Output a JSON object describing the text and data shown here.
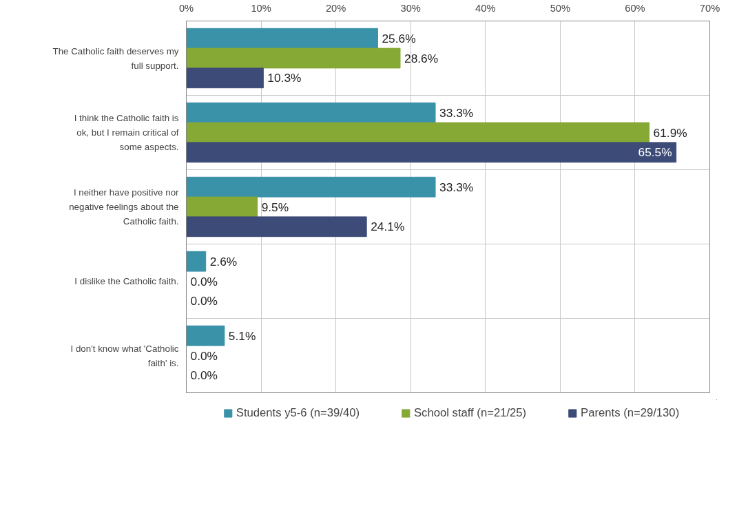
{
  "chart_data": {
    "type": "bar",
    "orientation": "horizontal",
    "categories": [
      "The Catholic faith deserves my full support.",
      "I think the Catholic faith is ok, but I remain critical of some aspects.",
      "I neither have positive nor negative feelings about the Catholic faith.",
      "I dislike the Catholic faith.",
      "I don't know what 'Catholic faith' is."
    ],
    "series": [
      {
        "name": "Students y5-6 (n=39/40)",
        "color": "#3a92a9",
        "values": [
          25.6,
          33.3,
          33.3,
          2.6,
          5.1
        ],
        "value_labels": [
          "25.6%",
          "33.3%",
          "33.3%",
          "2.6%",
          "5.1%"
        ]
      },
      {
        "name": "School staff (n=21/25)",
        "color": "#86a936",
        "values": [
          28.6,
          61.9,
          9.5,
          0.0,
          0.0
        ],
        "value_labels": [
          "28.6%",
          "61.9%",
          "9.5%",
          "0.0%",
          "0.0%"
        ]
      },
      {
        "name": "Parents (n=29/130)",
        "color": "#3d4b78",
        "values": [
          10.3,
          65.5,
          24.1,
          0.0,
          0.0
        ],
        "value_labels": [
          "10.3%",
          "65.5%",
          "24.1%",
          "0.0%",
          "0.0%"
        ]
      }
    ],
    "xlim": [
      0,
      70
    ],
    "xticks": [
      {
        "value": 0,
        "label": "0%"
      },
      {
        "value": 10,
        "label": "10%"
      },
      {
        "value": 20,
        "label": "20%"
      },
      {
        "value": 30,
        "label": "30%"
      },
      {
        "value": 40,
        "label": "40%"
      },
      {
        "value": 50,
        "label": "50%"
      },
      {
        "value": 60,
        "label": "60%"
      },
      {
        "value": 70,
        "label": "70%"
      }
    ],
    "grid": true,
    "legend": "bottom"
  }
}
